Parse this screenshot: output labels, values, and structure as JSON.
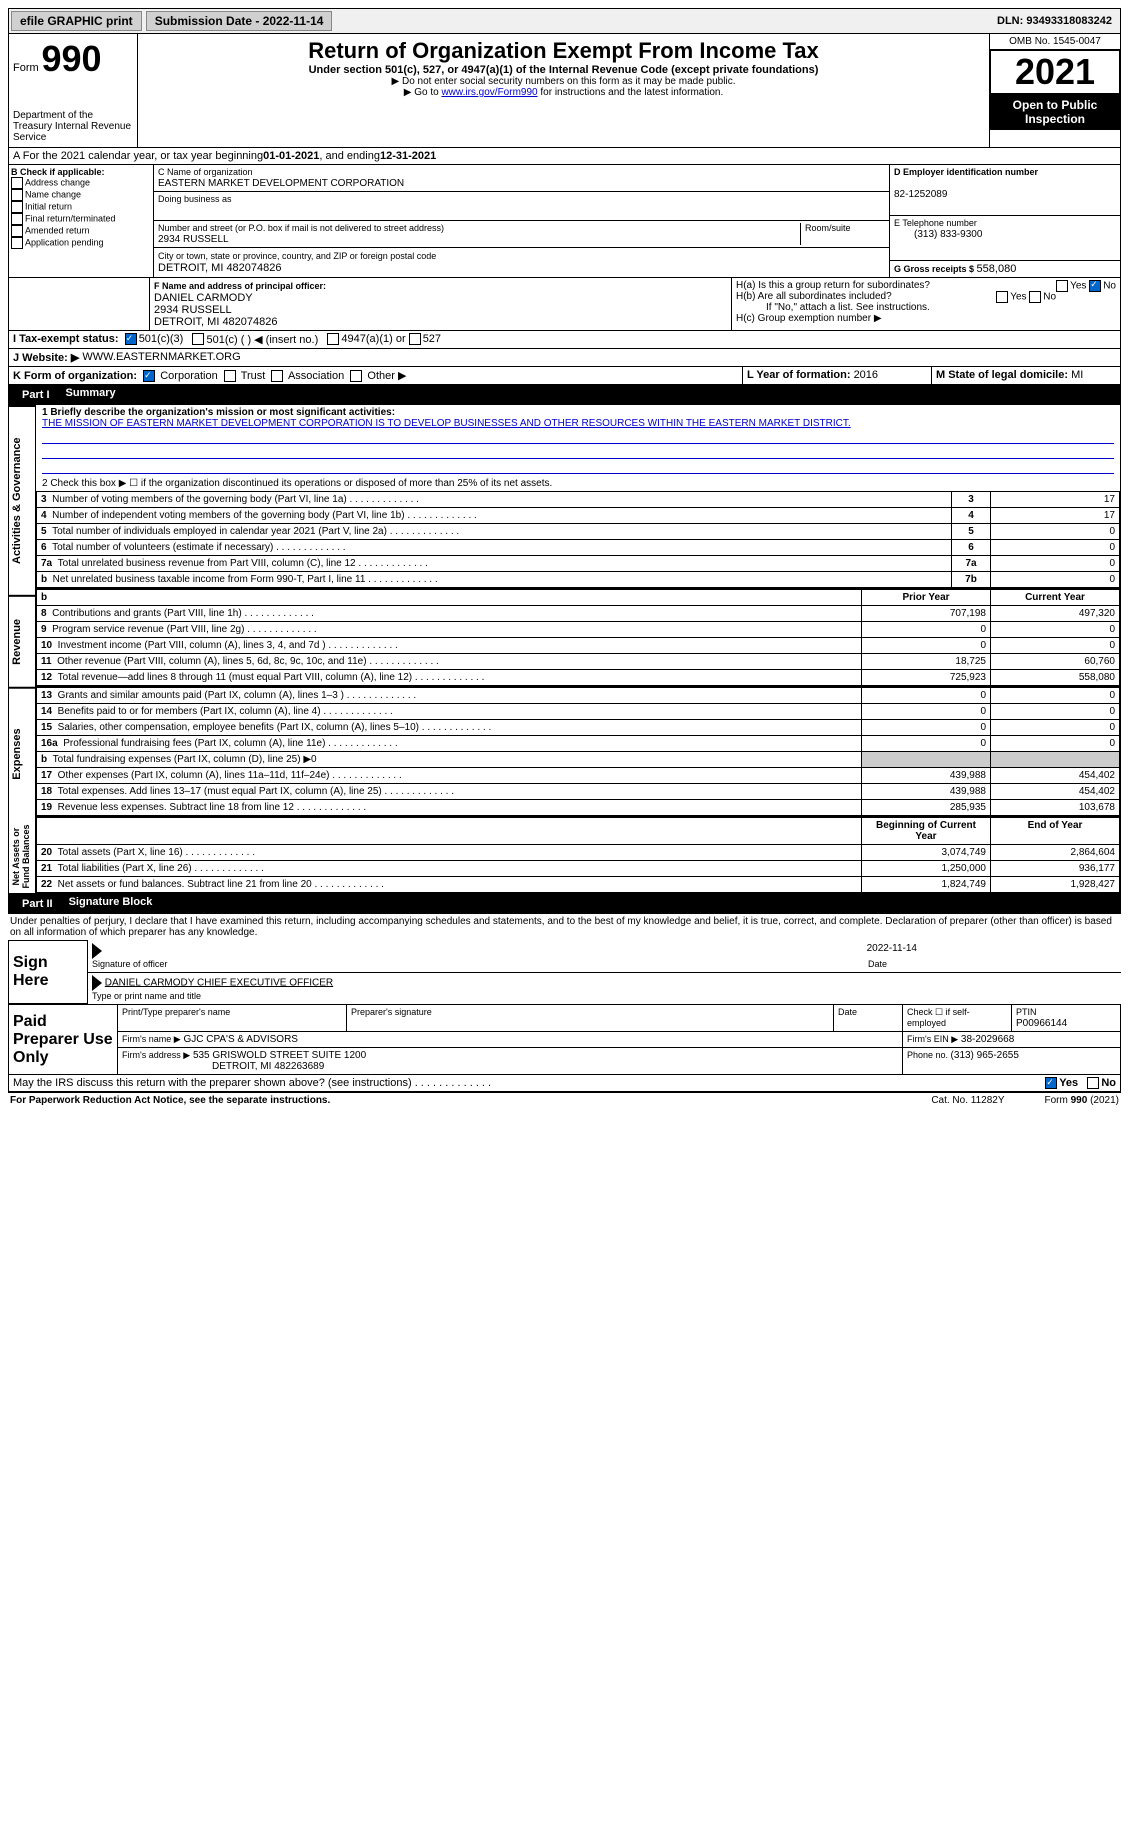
{
  "topbar": {
    "efile": "efile GRAPHIC print",
    "submission_label": "Submission Date - 2022-11-14",
    "dln_label": "DLN: 93493318083242"
  },
  "header": {
    "form_label": "Form",
    "form_num": "990",
    "dept_label": "Department of the Treasury Internal Revenue Service",
    "title": "Return of Organization Exempt From Income Tax",
    "subtitle": "Under section 501(c), 527, or 4947(a)(1) of the Internal Revenue Code (except private foundations)",
    "instr1": "▶ Do not enter social security numbers on this form as it may be made public.",
    "instr2_pre": "▶ Go to ",
    "instr2_link": "www.irs.gov/Form990",
    "instr2_post": " for instructions and the latest information.",
    "omb": "OMB No. 1545-0047",
    "year": "2021",
    "open_public": "Open to Public Inspection"
  },
  "period": {
    "text_pre": "A For the 2021 calendar year, or tax year beginning ",
    "begin": "01-01-2021",
    "mid": " , and ending ",
    "end": "12-31-2021"
  },
  "section_b": {
    "label": "B Check if applicable:",
    "items": [
      "Address change",
      "Name change",
      "Initial return",
      "Final return/terminated",
      "Amended return",
      "Application pending"
    ]
  },
  "section_c": {
    "name_label": "C Name of organization",
    "org_name": "EASTERN MARKET DEVELOPMENT CORPORATION",
    "dba_label": "Doing business as",
    "addr_label": "Number and street (or P.O. box if mail is not delivered to street address)",
    "room_label": "Room/suite",
    "addr": "2934 RUSSELL",
    "city_label": "City or town, state or province, country, and ZIP or foreign postal code",
    "city": "DETROIT, MI  482074826"
  },
  "section_d": {
    "label": "D Employer identification number",
    "ein": "82-1252089"
  },
  "section_e": {
    "label": "E Telephone number",
    "phone": "(313) 833-9300"
  },
  "section_g": {
    "label": "G Gross receipts $ ",
    "amount": "558,080"
  },
  "section_f": {
    "label": "F Name and address of principal officer:",
    "name": "DANIEL CARMODY",
    "addr1": "2934 RUSSELL",
    "addr2": "DETROIT, MI  482074826"
  },
  "section_h": {
    "ha": "H(a)  Is this a group return for subordinates?",
    "hb": "H(b)  Are all subordinates included?",
    "hb_note": "If \"No,\" attach a list. See instructions.",
    "hc": "H(c)  Group exemption number ▶",
    "yes": "Yes",
    "no": "No"
  },
  "section_i": {
    "label": "I   Tax-exempt status:",
    "opt1": "501(c)(3)",
    "opt2": "501(c) (  ) ◀ (insert no.)",
    "opt3": "4947(a)(1) or",
    "opt4": "527"
  },
  "section_j": {
    "label": "J   Website: ▶",
    "url": "WWW.EASTERNMARKET.ORG"
  },
  "section_k": {
    "label": "K Form of organization:",
    "corp": "Corporation",
    "trust": "Trust",
    "assoc": "Association",
    "other": "Other ▶"
  },
  "section_l": {
    "label": "L Year of formation: ",
    "val": "2016"
  },
  "section_m": {
    "label": "M State of legal domicile: ",
    "val": "MI"
  },
  "part1": {
    "label": "Part I",
    "title": "Summary",
    "side_activities": "Activities & Governance",
    "side_revenue": "Revenue",
    "side_expenses": "Expenses",
    "side_net": "Net Assets or Fund Balances",
    "line1_label": "1  Briefly describe the organization's mission or most significant activities:",
    "line1_text": "THE MISSION OF EASTERN MARKET DEVELOPMENT CORPORATION IS TO DEVELOP BUSINESSES AND OTHER RESOURCES WITHIN THE EASTERN MARKET DISTRICT.",
    "line2": "2   Check this box ▶ ☐ if the organization discontinued its operations or disposed of more than 25% of its net assets.",
    "rows_gov": [
      {
        "n": "3",
        "label": "Number of voting members of the governing body (Part VI, line 1a)",
        "box": "3",
        "val": "17"
      },
      {
        "n": "4",
        "label": "Number of independent voting members of the governing body (Part VI, line 1b)",
        "box": "4",
        "val": "17"
      },
      {
        "n": "5",
        "label": "Total number of individuals employed in calendar year 2021 (Part V, line 2a)",
        "box": "5",
        "val": "0"
      },
      {
        "n": "6",
        "label": "Total number of volunteers (estimate if necessary)",
        "box": "6",
        "val": "0"
      },
      {
        "n": "7a",
        "label": "Total unrelated business revenue from Part VIII, column (C), line 12",
        "box": "7a",
        "val": "0"
      },
      {
        "n": "b",
        "label": "Net unrelated business taxable income from Form 990-T, Part I, line 11",
        "box": "7b",
        "val": "0"
      }
    ],
    "prior_year": "Prior Year",
    "current_year": "Current Year",
    "rows_rev": [
      {
        "n": "8",
        "label": "Contributions and grants (Part VIII, line 1h)",
        "py": "707,198",
        "cy": "497,320"
      },
      {
        "n": "9",
        "label": "Program service revenue (Part VIII, line 2g)",
        "py": "0",
        "cy": "0"
      },
      {
        "n": "10",
        "label": "Investment income (Part VIII, column (A), lines 3, 4, and 7d )",
        "py": "0",
        "cy": "0"
      },
      {
        "n": "11",
        "label": "Other revenue (Part VIII, column (A), lines 5, 6d, 8c, 9c, 10c, and 11e)",
        "py": "18,725",
        "cy": "60,760"
      },
      {
        "n": "12",
        "label": "Total revenue—add lines 8 through 11 (must equal Part VIII, column (A), line 12)",
        "py": "725,923",
        "cy": "558,080"
      }
    ],
    "rows_exp": [
      {
        "n": "13",
        "label": "Grants and similar amounts paid (Part IX, column (A), lines 1–3 )",
        "py": "0",
        "cy": "0"
      },
      {
        "n": "14",
        "label": "Benefits paid to or for members (Part IX, column (A), line 4)",
        "py": "0",
        "cy": "0"
      },
      {
        "n": "15",
        "label": "Salaries, other compensation, employee benefits (Part IX, column (A), lines 5–10)",
        "py": "0",
        "cy": "0"
      },
      {
        "n": "16a",
        "label": "Professional fundraising fees (Part IX, column (A), line 11e)",
        "py": "0",
        "cy": "0"
      },
      {
        "n": "b",
        "label": "Total fundraising expenses (Part IX, column (D), line 25) ▶0",
        "py": "",
        "cy": "",
        "grey": true
      },
      {
        "n": "17",
        "label": "Other expenses (Part IX, column (A), lines 11a–11d, 11f–24e)",
        "py": "439,988",
        "cy": "454,402"
      },
      {
        "n": "18",
        "label": "Total expenses. Add lines 13–17 (must equal Part IX, column (A), line 25)",
        "py": "439,988",
        "cy": "454,402"
      },
      {
        "n": "19",
        "label": "Revenue less expenses. Subtract line 18 from line 12",
        "py": "285,935",
        "cy": "103,678"
      }
    ],
    "begin_year": "Beginning of Current Year",
    "end_year": "End of Year",
    "rows_net": [
      {
        "n": "20",
        "label": "Total assets (Part X, line 16)",
        "py": "3,074,749",
        "cy": "2,864,604"
      },
      {
        "n": "21",
        "label": "Total liabilities (Part X, line 26)",
        "py": "1,250,000",
        "cy": "936,177"
      },
      {
        "n": "22",
        "label": "Net assets or fund balances. Subtract line 21 from line 20",
        "py": "1,824,749",
        "cy": "1,928,427"
      }
    ]
  },
  "part2": {
    "label": "Part II",
    "title": "Signature Block",
    "declaration": "Under penalties of perjury, I declare that I have examined this return, including accompanying schedules and statements, and to the best of my knowledge and belief, it is true, correct, and complete. Declaration of preparer (other than officer) is based on all information of which preparer has any knowledge.",
    "sign_here": "Sign Here",
    "sig_officer": "Signature of officer",
    "sig_date": "2022-11-14",
    "date_label": "Date",
    "officer_name": "DANIEL CARMODY CHIEF EXECUTIVE OFFICER",
    "type_name": "Type or print name and title",
    "paid_prep": "Paid Preparer Use Only",
    "prep_name_label": "Print/Type preparer's name",
    "prep_sig_label": "Preparer's signature",
    "check_if": "Check ☐ if self-employed",
    "ptin_label": "PTIN",
    "ptin": "P00966144",
    "firm_name_label": "Firm's name    ▶",
    "firm_name": "GJC CPA'S & ADVISORS",
    "firm_ein_label": "Firm's EIN ▶",
    "firm_ein": "38-2029668",
    "firm_addr_label": "Firm's address ▶",
    "firm_addr1": "535 GRISWOLD STREET SUITE 1200",
    "firm_addr2": "DETROIT, MI  482263689",
    "firm_phone_label": "Phone no. ",
    "firm_phone": "(313) 965-2655",
    "discuss": "May the IRS discuss this return with the preparer shown above? (see instructions)",
    "yes": "Yes",
    "no": "No"
  },
  "footer": {
    "paperwork": "For Paperwork Reduction Act Notice, see the separate instructions.",
    "cat": "Cat. No. 11282Y",
    "form": "Form 990 (2021)"
  }
}
